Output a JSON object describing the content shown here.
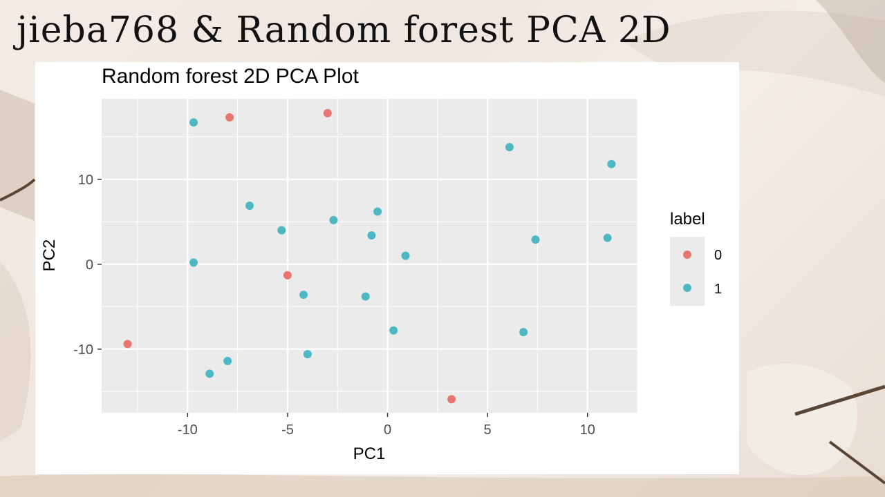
{
  "slide": {
    "title": "jieba768 & Random forest PCA 2D"
  },
  "colors": {
    "label_0": "#e8766e",
    "label_1": "#4db8c4",
    "panel_bg": "#ebebeb",
    "grid": "#ffffff"
  },
  "chart_data": {
    "type": "scatter",
    "title": "Random forest 2D PCA Plot",
    "xlabel": "PC1",
    "ylabel": "PC2",
    "xlim": [
      -14.3,
      12.5
    ],
    "ylim": [
      -17.5,
      19.5
    ],
    "xticks": [
      -10,
      -5,
      0,
      5,
      10
    ],
    "xtick_labels": [
      "-10",
      "-5",
      "0",
      "5",
      "10"
    ],
    "yticks": [
      -10,
      0,
      10
    ],
    "ytick_labels": [
      "-10",
      "0",
      "10"
    ],
    "grid": true,
    "legend": {
      "title": "label",
      "position": "right",
      "entries": [
        "0",
        "1"
      ]
    },
    "series": [
      {
        "name": "0",
        "points": [
          [
            -7.9,
            17.3
          ],
          [
            -3.0,
            17.8
          ],
          [
            -5.0,
            -1.3
          ],
          [
            -13.0,
            -9.4
          ],
          [
            3.2,
            -15.9
          ]
        ]
      },
      {
        "name": "1",
        "points": [
          [
            -9.7,
            16.7
          ],
          [
            6.1,
            13.8
          ],
          [
            11.2,
            11.8
          ],
          [
            -6.9,
            6.9
          ],
          [
            -0.5,
            6.2
          ],
          [
            -5.3,
            4.0
          ],
          [
            -2.7,
            5.2
          ],
          [
            -0.8,
            3.4
          ],
          [
            0.9,
            1.0
          ],
          [
            7.4,
            2.9
          ],
          [
            11.0,
            3.1
          ],
          [
            -9.7,
            0.2
          ],
          [
            -4.2,
            -3.6
          ],
          [
            -1.1,
            -3.8
          ],
          [
            0.3,
            -7.8
          ],
          [
            6.8,
            -8.0
          ],
          [
            -8.0,
            -11.4
          ],
          [
            -4.0,
            -10.6
          ],
          [
            -8.9,
            -12.9
          ]
        ]
      }
    ]
  }
}
